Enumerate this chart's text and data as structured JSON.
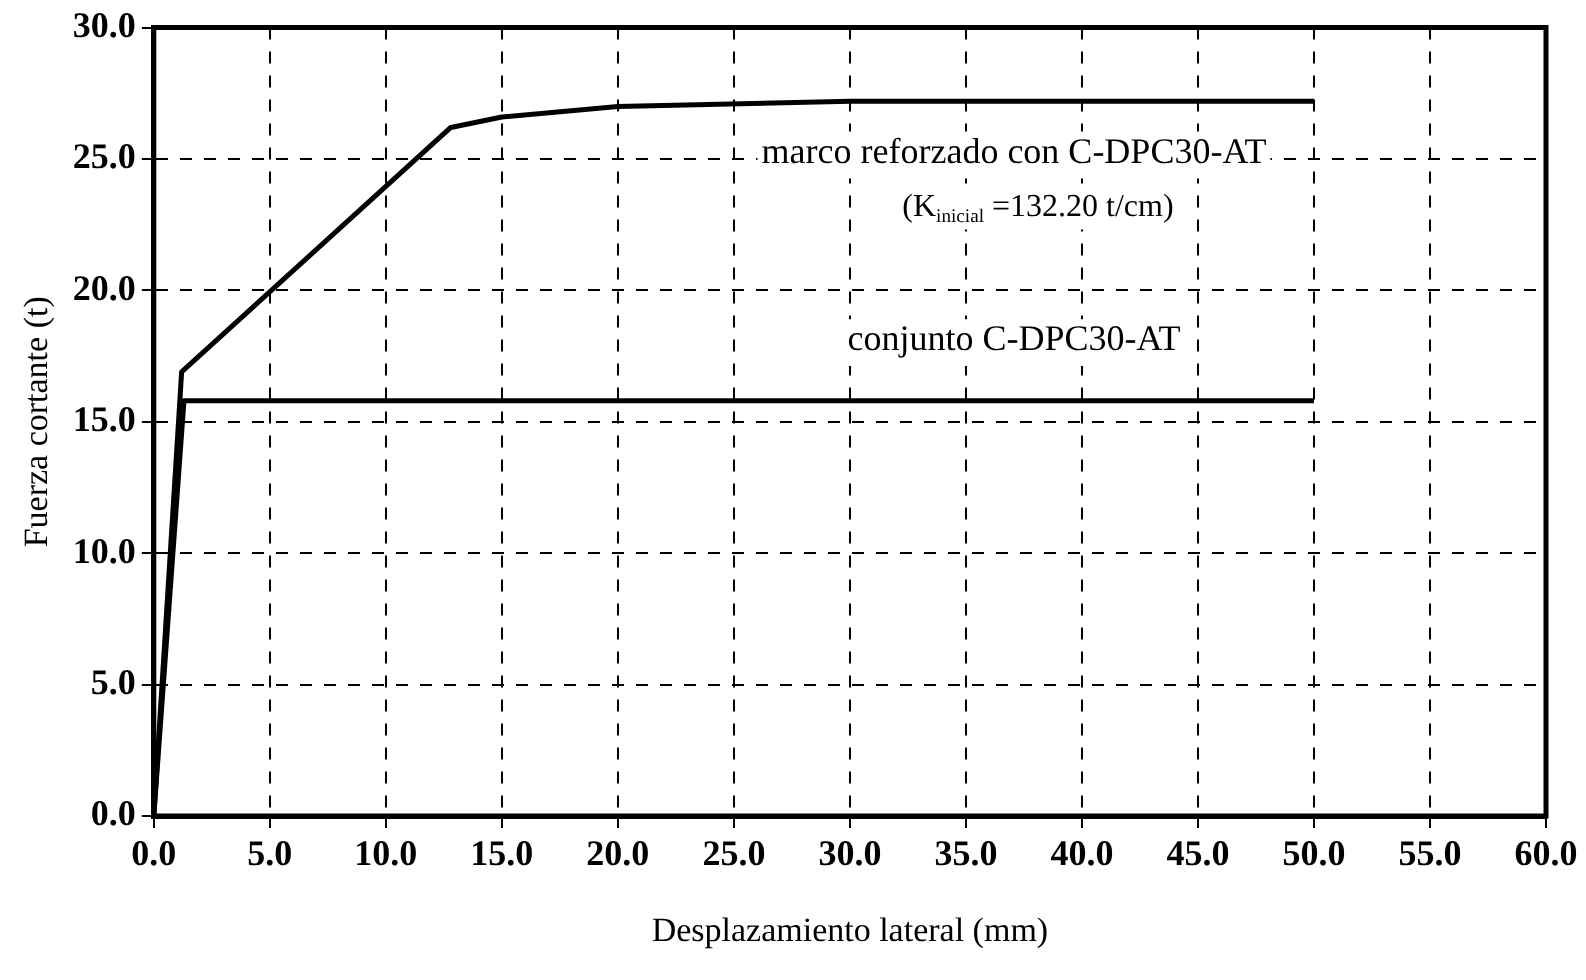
{
  "chart_data": {
    "type": "line",
    "xlabel": "Desplazamiento lateral (mm)",
    "ylabel": "Fuerza cortante (t)",
    "xlim": [
      0,
      60
    ],
    "xticks": [
      {
        "value": 0,
        "label": "0.0"
      },
      {
        "value": 5,
        "label": "5.0"
      },
      {
        "value": 10,
        "label": "10.0"
      },
      {
        "value": 15,
        "label": "15.0"
      },
      {
        "value": 20,
        "label": "20.0"
      },
      {
        "value": 25,
        "label": "25.0"
      },
      {
        "value": 30,
        "label": "30.0"
      },
      {
        "value": 35,
        "label": "35.0"
      },
      {
        "value": 40,
        "label": "40.0"
      },
      {
        "value": 45,
        "label": "45.0"
      },
      {
        "value": 50,
        "label": "50.0"
      },
      {
        "value": 55,
        "label": "55.0"
      },
      {
        "value": 60,
        "label": "60.0"
      }
    ],
    "ylim": [
      0,
      30
    ],
    "yticks": [
      {
        "value": 0,
        "label": "0.0"
      },
      {
        "value": 5,
        "label": "5.0"
      },
      {
        "value": 10,
        "label": "10.0"
      },
      {
        "value": 15,
        "label": "15.0"
      },
      {
        "value": 20,
        "label": "20.0"
      },
      {
        "value": 25,
        "label": "25.0"
      },
      {
        "value": 30,
        "label": "30.0"
      }
    ],
    "series": [
      {
        "name": "marco reforzado con C-DPC30-AT",
        "color": "#000000",
        "x": [
          0,
          1.2,
          12.8,
          15,
          20,
          30,
          50
        ],
        "values": [
          0,
          16.9,
          26.2,
          26.6,
          27.0,
          27.2,
          27.2
        ]
      },
      {
        "name": "conjunto C-DPC30-AT",
        "color": "#000000",
        "x": [
          0,
          1.3,
          50
        ],
        "values": [
          0,
          15.8,
          15.8
        ]
      }
    ],
    "annotations": [
      "(K$_{inicial}$ =132.20 t/cm)"
    ],
    "grid": true,
    "legend": false,
    "marker": "none",
    "line_style": "solid"
  }
}
